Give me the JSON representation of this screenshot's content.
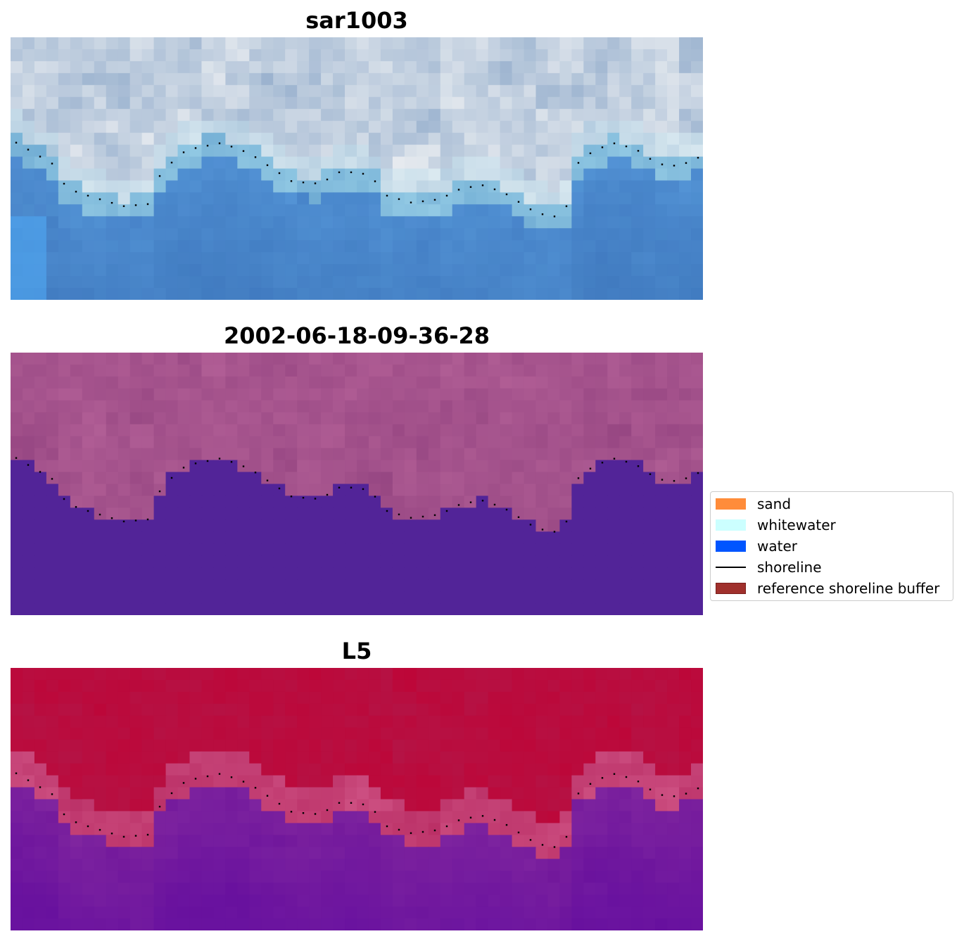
{
  "chart_data": [
    {
      "type": "heatmap",
      "title": "sar1003",
      "rendering": "rgb-image",
      "palette": "rgb",
      "shoreline": "dotted"
    },
    {
      "type": "heatmap",
      "title": "2002-06-18-09-36-28",
      "rendering": "classified-image",
      "palette": "classified",
      "shoreline": "dotted"
    },
    {
      "type": "heatmap",
      "title": "L5",
      "rendering": "index-image",
      "palette": "index",
      "shoreline": "dotted"
    }
  ],
  "legend": {
    "items": [
      {
        "label": "sand",
        "color": "#ff8c3a",
        "kind": "patch"
      },
      {
        "label": "whitewater",
        "color": "#ccffff",
        "kind": "patch"
      },
      {
        "label": "water",
        "color": "#0055ff",
        "kind": "patch"
      },
      {
        "label": "shoreline",
        "color": "#000000",
        "kind": "line"
      },
      {
        "label": "reference shoreline buffer",
        "color": "#a0302c",
        "kind": "patch"
      }
    ]
  }
}
